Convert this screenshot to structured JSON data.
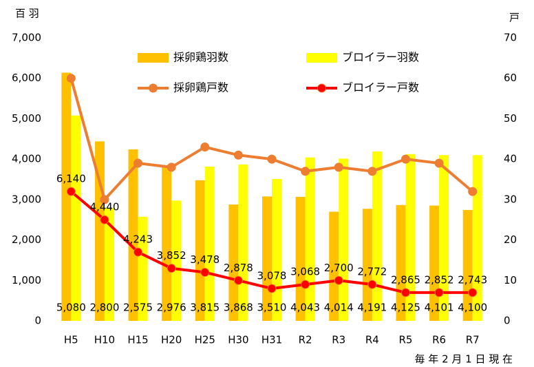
{
  "chart_data": {
    "type": "bar_line",
    "y_label": "百 羽",
    "y2_label": "戸",
    "note": "毎 年 2 月 1 日 現 在",
    "categories": [
      "H5",
      "H10",
      "H15",
      "H20",
      "H25",
      "H30",
      "H31",
      "R2",
      "R3",
      "R4",
      "R5",
      "R6",
      "R7"
    ],
    "series": [
      {
        "name": "採卵鶏羽数",
        "kind": "bar",
        "color": "#FFC000",
        "values": [
          6140,
          4440,
          4243,
          3852,
          3478,
          2878,
          3078,
          3068,
          2700,
          2772,
          2865,
          2852,
          2743
        ],
        "value_labels": [
          "6,140",
          "4,440",
          "4,243",
          "3,852",
          "3,478",
          "2,878",
          "3,078",
          "3,068",
          "2,700",
          "2,772",
          "2,865",
          "2,852",
          "2,743"
        ]
      },
      {
        "name": "ブロイラー羽数",
        "kind": "bar",
        "color": "#FFFF00",
        "values": [
          5080,
          2800,
          2575,
          2976,
          3815,
          3868,
          3510,
          4043,
          4014,
          4191,
          4125,
          4101,
          4100
        ],
        "value_labels": [
          "5,080",
          "2,800",
          "2,575",
          "2,976",
          "3,815",
          "3,868",
          "3,510",
          "4,043",
          "4,014",
          "4,191",
          "4,125",
          "4,101",
          "4,100"
        ]
      },
      {
        "name": "採卵鶏戸数",
        "kind": "line",
        "axis": "y2",
        "color": "#ED7D31",
        "values": [
          60,
          30,
          39,
          38,
          43,
          41,
          40,
          37,
          38,
          37,
          40,
          39,
          32
        ]
      },
      {
        "name": "ブロイラー戸数",
        "kind": "line",
        "axis": "y2",
        "color": "#FF0000",
        "values": [
          32,
          25,
          17,
          13,
          12,
          10,
          8,
          9,
          10,
          9,
          7,
          7,
          7
        ]
      }
    ],
    "ylim": [
      0,
      7000
    ],
    "yticks": [
      0,
      {
        "value": 1000,
        "label": "1,000"
      },
      {
        "value": 2000,
        "label": "2,000"
      },
      {
        "value": 3000,
        "label": "3,000"
      },
      {
        "value": 4000,
        "label": "4,000"
      },
      {
        "value": 5000,
        "label": "5,000"
      },
      {
        "value": 6000,
        "label": "6,000"
      },
      {
        "value": 7000,
        "label": "7,000"
      }
    ],
    "y2lim": [
      0,
      70
    ],
    "y2ticks": [
      0,
      10,
      20,
      30,
      40,
      50,
      60,
      70
    ],
    "grid": false
  }
}
